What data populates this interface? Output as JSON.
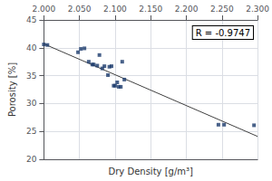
{
  "chart_data": {
    "type": "scatter",
    "xlabel": "Dry Density [g/m³]",
    "ylabel": "Porosity [%]",
    "annotation": "R = -0.9747",
    "series": [
      {
        "type": "scatter",
        "marker": "square",
        "color": "#1a3a6b",
        "x": [
          2.0,
          2.005,
          2.048,
          2.052,
          2.057,
          2.063,
          2.068,
          2.07,
          2.075,
          2.078,
          2.082,
          2.085,
          2.09,
          2.092,
          2.095,
          2.098,
          2.1,
          2.103,
          2.105,
          2.108,
          2.11,
          2.113,
          2.245,
          2.253,
          2.295
        ],
        "values": [
          40.6,
          40.5,
          39.2,
          39.8,
          39.9,
          37.5,
          37.0,
          37.0,
          36.8,
          38.7,
          36.3,
          36.7,
          35.1,
          36.6,
          36.7,
          33.2,
          33.2,
          33.8,
          33.0,
          33.0,
          37.5,
          34.3,
          26.2,
          26.2,
          26.1
        ]
      },
      {
        "type": "line",
        "color": "#404040",
        "x": [
          2.0,
          2.3
        ],
        "values": [
          40.7,
          24.1
        ]
      }
    ],
    "xlim": [
      2.0,
      2.3
    ],
    "ylim": [
      20,
      45
    ],
    "xticks": [
      {
        "value": 2.0,
        "label": "2.000"
      },
      {
        "value": 2.05,
        "label": "2.050"
      },
      {
        "value": 2.1,
        "label": "2.100"
      },
      {
        "value": 2.15,
        "label": "2.150"
      },
      {
        "value": 2.2,
        "label": "2.200"
      },
      {
        "value": 2.25,
        "label": "2.250"
      },
      {
        "value": 2.3,
        "label": "2.300"
      }
    ],
    "yticks": [
      20,
      25,
      30,
      35,
      40,
      45
    ],
    "grid": true
  }
}
